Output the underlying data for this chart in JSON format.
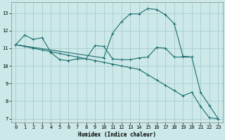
{
  "xlabel": "Humidex (Indice chaleur)",
  "bg_color": "#cce8e8",
  "grid_color": "#aacccc",
  "line_color": "#1a6e6e",
  "xlim": [
    -0.5,
    23.5
  ],
  "ylim": [
    6.8,
    13.6
  ],
  "xticks": [
    0,
    1,
    2,
    3,
    4,
    5,
    6,
    7,
    8,
    9,
    10,
    11,
    12,
    13,
    14,
    15,
    16,
    17,
    18,
    19,
    20,
    21,
    22,
    23
  ],
  "yticks": [
    7,
    8,
    9,
    10,
    11,
    12,
    13
  ],
  "line1_x": [
    0,
    1,
    2,
    3,
    4,
    5,
    6,
    7,
    8,
    9,
    10,
    11,
    12,
    13,
    14,
    15,
    16,
    17,
    18,
    19,
    20
  ],
  "line1_y": [
    11.2,
    11.75,
    11.5,
    11.6,
    10.75,
    10.35,
    10.3,
    10.4,
    10.4,
    11.15,
    11.1,
    10.4,
    10.35,
    10.35,
    10.45,
    10.5,
    11.05,
    11.0,
    10.5,
    10.5,
    10.5
  ],
  "line2_x": [
    0,
    1,
    2,
    3,
    4,
    5,
    6,
    7,
    8,
    9,
    10,
    11,
    12,
    13,
    14,
    15,
    16,
    17,
    18,
    19,
    20,
    21,
    22,
    23
  ],
  "line2_y": [
    11.2,
    11.1,
    11.0,
    10.9,
    10.8,
    10.7,
    10.6,
    10.5,
    10.4,
    10.3,
    10.2,
    10.1,
    10.0,
    9.9,
    9.8,
    9.5,
    9.2,
    8.9,
    8.6,
    8.3,
    8.5,
    7.7,
    7.05,
    7.0
  ],
  "line3_x": [
    0,
    10,
    11,
    12,
    13,
    14,
    15,
    16,
    17,
    18,
    19,
    20,
    21,
    22,
    23
  ],
  "line3_y": [
    11.2,
    10.45,
    11.85,
    12.5,
    12.95,
    12.95,
    13.25,
    13.2,
    12.9,
    12.4,
    10.55,
    10.5,
    8.5,
    7.75,
    7.0
  ]
}
